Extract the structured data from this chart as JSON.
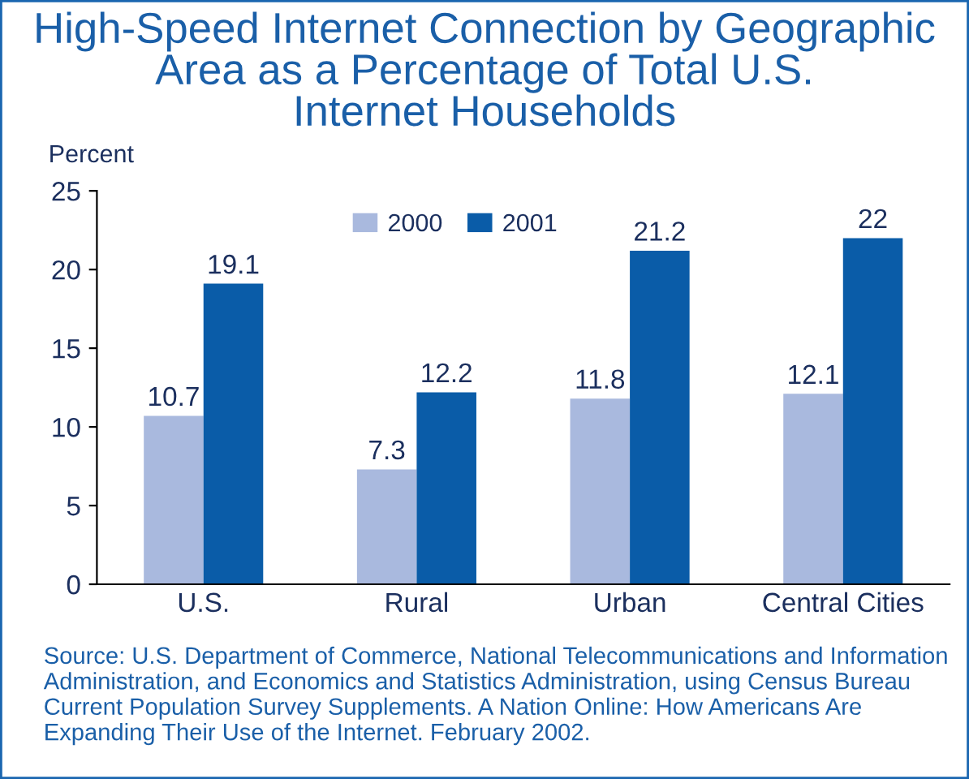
{
  "chart_data": {
    "type": "bar",
    "title": "High-Speed Internet Connection by Geographic\nArea as a Percentage of Total U.S.\nInternet Households",
    "ylabel": "Percent",
    "categories": [
      "U.S.",
      "Rural",
      "Urban",
      "Central Cities"
    ],
    "series": [
      {
        "name": "2000",
        "color": "#a9b9de",
        "values": [
          10.7,
          7.3,
          11.8,
          12.1
        ]
      },
      {
        "name": "2001",
        "color": "#0a5ca8",
        "values": [
          19.1,
          12.2,
          21.2,
          22
        ]
      }
    ],
    "ylim": [
      0,
      25
    ],
    "yticks": [
      0,
      5,
      10,
      15,
      20,
      25
    ],
    "grid": false,
    "legend": "top",
    "data_labels": true,
    "annotations": [
      "Source: U.S. Department of Commerce, National Telecommunications and Information Administration, and Economics and Statistics Administration, using Census Bureau Current Population Survey Supplements. A Nation Online: How Americans Are Expanding Their Use of the Internet. February 2002."
    ]
  }
}
